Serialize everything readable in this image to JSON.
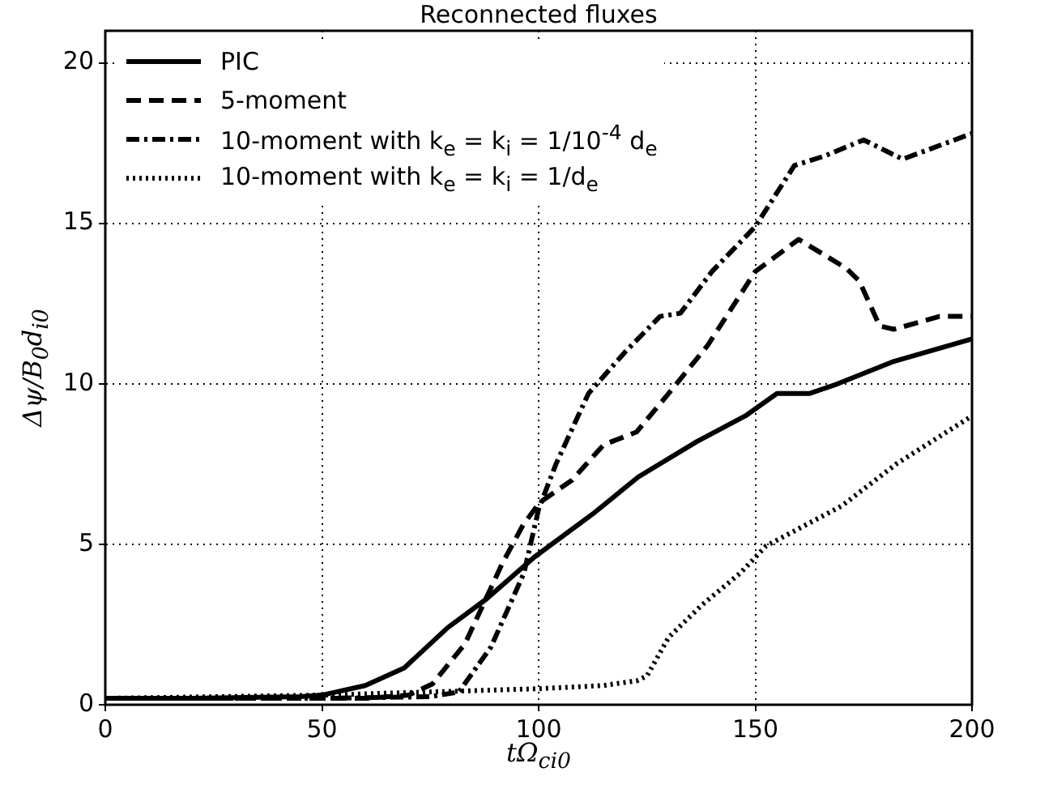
{
  "chart_data": {
    "type": "line",
    "title": "Reconnected fluxes",
    "xlabel": "tΩ$_{ci0}$",
    "ylabel": "Δψ/B$_{0}$d$_{i0}$",
    "xlim": [
      0,
      200
    ],
    "xticks": [
      0,
      50,
      100,
      150,
      200
    ],
    "ylim": [
      0,
      21
    ],
    "yticks": [
      0,
      5,
      10,
      15,
      20
    ],
    "grid": true,
    "legend": "top left",
    "marker": "none",
    "series": [
      {
        "name": "PIC",
        "color": "#000000",
        "line_style": "solid",
        "x": [
          0,
          20,
          45,
          50,
          60,
          69,
          79,
          88,
          99,
          113,
          123,
          136.5,
          147.7,
          155,
          162.6,
          169,
          182,
          200
        ],
        "values": [
          0.2,
          0.2,
          0.25,
          0.3,
          0.6,
          1.15,
          2.4,
          3.3,
          4.6,
          6.0,
          7.1,
          8.2,
          9.0,
          9.7,
          9.7,
          10.0,
          10.7,
          11.4
        ]
      },
      {
        "name": "5-moment",
        "color": "#000000",
        "line_style": "dashed",
        "x": [
          0,
          40,
          60,
          70,
          75.5,
          83,
          91.6,
          96.4,
          100.2,
          107.7,
          115,
          122.6,
          130,
          139,
          150,
          160,
          171,
          174,
          178.7,
          182,
          192.5,
          200
        ],
        "values": [
          0.2,
          0.2,
          0.2,
          0.3,
          0.65,
          1.9,
          4.4,
          5.6,
          6.3,
          7.0,
          8.1,
          8.5,
          9.7,
          11.2,
          13.5,
          14.5,
          13.6,
          13.2,
          11.8,
          11.7,
          12.1,
          12.1
        ]
      },
      {
        "name": "10-moment with k$_{e}$ = k$_{i}$ = 1/10$^{-4}$ d$_{e}$",
        "color": "#000000",
        "line_style": "dashdot",
        "x": [
          0,
          50,
          75,
          81.6,
          89,
          96.6,
          100,
          104,
          111.5,
          120,
          128,
          132.7,
          140,
          150,
          159,
          166,
          175,
          184,
          200
        ],
        "values": [
          0.2,
          0.2,
          0.25,
          0.4,
          1.8,
          4.1,
          6.1,
          7.5,
          9.7,
          11.0,
          12.1,
          12.2,
          13.5,
          14.9,
          16.8,
          17.1,
          17.6,
          17.0,
          17.8
        ]
      },
      {
        "name": "10-moment with k$_{e}$ = k$_{i}$ = 1/d$_{e}$",
        "color": "#000000",
        "line_style": "dotted",
        "x": [
          0,
          50,
          100,
          115,
          122.7,
          125,
          130,
          137.6,
          146.5,
          152.5,
          170,
          182.5,
          200
        ],
        "values": [
          0.2,
          0.3,
          0.5,
          0.6,
          0.75,
          0.9,
          2.1,
          3.1,
          4.1,
          4.95,
          6.2,
          7.5,
          9.0
        ]
      }
    ]
  }
}
